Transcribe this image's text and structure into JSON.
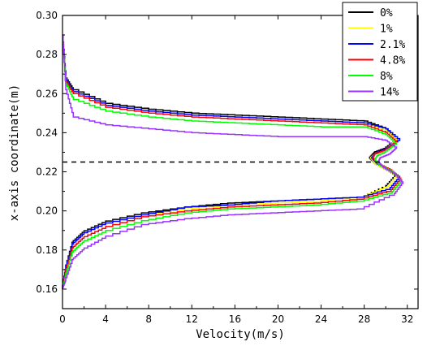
{
  "chart_data": {
    "type": "line",
    "title": "",
    "xlabel": "Velocity(m/s)",
    "ylabel": "x-axis coordinate(m)",
    "xlim": [
      0,
      33
    ],
    "ylim": [
      0.15,
      0.3
    ],
    "x_ticks": [
      0,
      4,
      8,
      12,
      16,
      20,
      24,
      28,
      32
    ],
    "y_ticks": [
      0.16,
      0.18,
      0.2,
      0.22,
      0.24,
      0.26,
      0.28,
      0.3
    ],
    "x_tick_labels": [
      "0",
      "4",
      "8",
      "12",
      "16",
      "20",
      "24",
      "28",
      "32"
    ],
    "y_tick_labels": [
      "0.16",
      "0.18",
      "0.20",
      "0.22",
      "0.24",
      "0.26",
      "0.28",
      "0.30"
    ],
    "grid": false,
    "legend_position": "top-right",
    "reference_line": {
      "y": 0.225,
      "style": "dashed",
      "color": "#000000"
    },
    "series": [
      {
        "name": "0%",
        "color": "#000000",
        "points": [
          [
            0,
            0.29
          ],
          [
            0.3,
            0.268
          ],
          [
            1,
            0.262
          ],
          [
            4,
            0.255
          ],
          [
            8,
            0.252
          ],
          [
            12,
            0.25
          ],
          [
            16,
            0.249
          ],
          [
            20,
            0.248
          ],
          [
            24,
            0.247
          ],
          [
            28,
            0.246
          ],
          [
            30,
            0.242
          ],
          [
            31,
            0.236
          ],
          [
            30,
            0.232
          ],
          [
            29,
            0.23
          ],
          [
            28.5,
            0.227
          ],
          [
            29,
            0.224
          ],
          [
            30,
            0.221
          ],
          [
            31,
            0.218
          ],
          [
            30,
            0.212
          ],
          [
            28,
            0.207
          ],
          [
            24,
            0.206
          ],
          [
            20,
            0.205
          ],
          [
            16,
            0.204
          ],
          [
            12,
            0.202
          ],
          [
            8,
            0.199
          ],
          [
            4,
            0.194
          ],
          [
            2,
            0.189
          ],
          [
            1,
            0.184
          ],
          [
            0.3,
            0.17
          ],
          [
            0,
            0.16
          ]
        ]
      },
      {
        "name": "1%",
        "color": "#ffff00",
        "points": [
          [
            0,
            0.29
          ],
          [
            0.3,
            0.267
          ],
          [
            1,
            0.261
          ],
          [
            4,
            0.254
          ],
          [
            8,
            0.251
          ],
          [
            12,
            0.249
          ],
          [
            16,
            0.248
          ],
          [
            20,
            0.247
          ],
          [
            24,
            0.246
          ],
          [
            28,
            0.245
          ],
          [
            30,
            0.241
          ],
          [
            31,
            0.236
          ],
          [
            30,
            0.231
          ],
          [
            29,
            0.229
          ],
          [
            28.6,
            0.227
          ],
          [
            29,
            0.224
          ],
          [
            30,
            0.221
          ],
          [
            31.1,
            0.218
          ],
          [
            30.2,
            0.212
          ],
          [
            28,
            0.207
          ],
          [
            24,
            0.205
          ],
          [
            20,
            0.204
          ],
          [
            16,
            0.203
          ],
          [
            12,
            0.201
          ],
          [
            8,
            0.198
          ],
          [
            4,
            0.193
          ],
          [
            2,
            0.188
          ],
          [
            1,
            0.183
          ],
          [
            0.3,
            0.17
          ],
          [
            0,
            0.16
          ]
        ]
      },
      {
        "name": "2.1%",
        "color": "#0000ff",
        "points": [
          [
            0,
            0.29
          ],
          [
            0.3,
            0.267
          ],
          [
            1,
            0.261
          ],
          [
            4,
            0.254
          ],
          [
            8,
            0.251
          ],
          [
            12,
            0.249
          ],
          [
            16,
            0.248
          ],
          [
            20,
            0.247
          ],
          [
            24,
            0.246
          ],
          [
            28,
            0.245
          ],
          [
            30,
            0.242
          ],
          [
            31.3,
            0.236
          ],
          [
            30.2,
            0.232
          ],
          [
            29,
            0.229
          ],
          [
            28.7,
            0.227
          ],
          [
            29.2,
            0.224
          ],
          [
            30.3,
            0.221
          ],
          [
            31.3,
            0.217
          ],
          [
            30.4,
            0.211
          ],
          [
            28,
            0.207
          ],
          [
            24,
            0.206
          ],
          [
            20,
            0.205
          ],
          [
            16,
            0.203
          ],
          [
            12,
            0.202
          ],
          [
            8,
            0.198
          ],
          [
            4,
            0.193
          ],
          [
            2,
            0.188
          ],
          [
            1,
            0.183
          ],
          [
            0.3,
            0.17
          ],
          [
            0,
            0.16
          ]
        ]
      },
      {
        "name": "4.8%",
        "color": "#ff0000",
        "points": [
          [
            0,
            0.29
          ],
          [
            0.3,
            0.266
          ],
          [
            1,
            0.26
          ],
          [
            4,
            0.253
          ],
          [
            8,
            0.25
          ],
          [
            12,
            0.248
          ],
          [
            16,
            0.247
          ],
          [
            20,
            0.246
          ],
          [
            24,
            0.245
          ],
          [
            28,
            0.244
          ],
          [
            30,
            0.24
          ],
          [
            31,
            0.235
          ],
          [
            30,
            0.231
          ],
          [
            29,
            0.229
          ],
          [
            28.8,
            0.227
          ],
          [
            29.3,
            0.224
          ],
          [
            30.4,
            0.221
          ],
          [
            31.4,
            0.216
          ],
          [
            30.5,
            0.21
          ],
          [
            28,
            0.206
          ],
          [
            24,
            0.204
          ],
          [
            20,
            0.203
          ],
          [
            16,
            0.202
          ],
          [
            12,
            0.2
          ],
          [
            8,
            0.197
          ],
          [
            4,
            0.191
          ],
          [
            2,
            0.186
          ],
          [
            1,
            0.181
          ],
          [
            0.3,
            0.168
          ],
          [
            0,
            0.16
          ]
        ]
      },
      {
        "name": "8%",
        "color": "#00ff00",
        "points": [
          [
            0,
            0.29
          ],
          [
            0.3,
            0.265
          ],
          [
            1,
            0.257
          ],
          [
            4,
            0.251
          ],
          [
            8,
            0.248
          ],
          [
            12,
            0.246
          ],
          [
            16,
            0.245
          ],
          [
            20,
            0.244
          ],
          [
            24,
            0.243
          ],
          [
            28,
            0.243
          ],
          [
            30,
            0.239
          ],
          [
            31,
            0.234
          ],
          [
            30,
            0.23
          ],
          [
            29.2,
            0.228
          ],
          [
            29,
            0.226
          ],
          [
            29.5,
            0.223
          ],
          [
            30.6,
            0.22
          ],
          [
            31.5,
            0.215
          ],
          [
            30.6,
            0.209
          ],
          [
            28,
            0.205
          ],
          [
            24,
            0.203
          ],
          [
            20,
            0.202
          ],
          [
            16,
            0.201
          ],
          [
            12,
            0.199
          ],
          [
            8,
            0.195
          ],
          [
            4,
            0.189
          ],
          [
            2,
            0.184
          ],
          [
            1,
            0.179
          ],
          [
            0.3,
            0.166
          ],
          [
            0,
            0.16
          ]
        ]
      },
      {
        "name": "14%",
        "color": "#9933ff",
        "points": [
          [
            0,
            0.29
          ],
          [
            0.3,
            0.262
          ],
          [
            1,
            0.248
          ],
          [
            4,
            0.244
          ],
          [
            8,
            0.242
          ],
          [
            12,
            0.24
          ],
          [
            16,
            0.239
          ],
          [
            20,
            0.238
          ],
          [
            24,
            0.238
          ],
          [
            28,
            0.238
          ],
          [
            30,
            0.236
          ],
          [
            31,
            0.232
          ],
          [
            30.4,
            0.229
          ],
          [
            29.5,
            0.227
          ],
          [
            29.3,
            0.225
          ],
          [
            29.8,
            0.222
          ],
          [
            30.8,
            0.219
          ],
          [
            31.6,
            0.214
          ],
          [
            30.8,
            0.208
          ],
          [
            28,
            0.201
          ],
          [
            24,
            0.2
          ],
          [
            20,
            0.199
          ],
          [
            16,
            0.198
          ],
          [
            12,
            0.196
          ],
          [
            8,
            0.193
          ],
          [
            4,
            0.186
          ],
          [
            2,
            0.18
          ],
          [
            1,
            0.175
          ],
          [
            0.3,
            0.164
          ],
          [
            0,
            0.16
          ]
        ]
      }
    ]
  }
}
